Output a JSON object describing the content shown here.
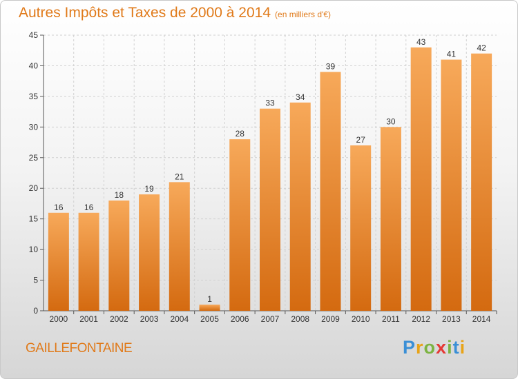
{
  "header": {
    "title": "Autres Impôts et Taxes de 2000 à 2014",
    "subtitle": "(en milliers d'€)"
  },
  "footer": {
    "commune": "GAILLEFONTAINE",
    "logo": {
      "letters": [
        "P",
        "r",
        "o",
        "x",
        "i",
        "t",
        "i"
      ],
      "colors": [
        "#3a8fd6",
        "#e8a317",
        "#7cb342",
        "#e53935",
        "#7cb342",
        "#3a8fd6",
        "#e8a317"
      ]
    }
  },
  "colors": {
    "title": "#e07a1a",
    "bar_top": "#f7a95a",
    "bar_bottom": "#d46a10",
    "grid": "#d0d0d0"
  },
  "chart_data": {
    "type": "bar",
    "title": "Autres Impôts et Taxes de 2000 à 2014",
    "subtitle": "(en milliers d'€)",
    "categories": [
      "2000",
      "2001",
      "2002",
      "2003",
      "2004",
      "2005",
      "2006",
      "2007",
      "2008",
      "2009",
      "2010",
      "2011",
      "2012",
      "2013",
      "2014"
    ],
    "values": [
      16,
      16,
      18,
      19,
      21,
      1,
      28,
      33,
      34,
      39,
      27,
      30,
      43,
      41,
      42
    ],
    "ylim": [
      0,
      45
    ],
    "yticks": [
      0,
      5,
      10,
      15,
      20,
      25,
      30,
      35,
      40,
      45
    ],
    "grid": true,
    "xlabel": "",
    "ylabel": ""
  }
}
